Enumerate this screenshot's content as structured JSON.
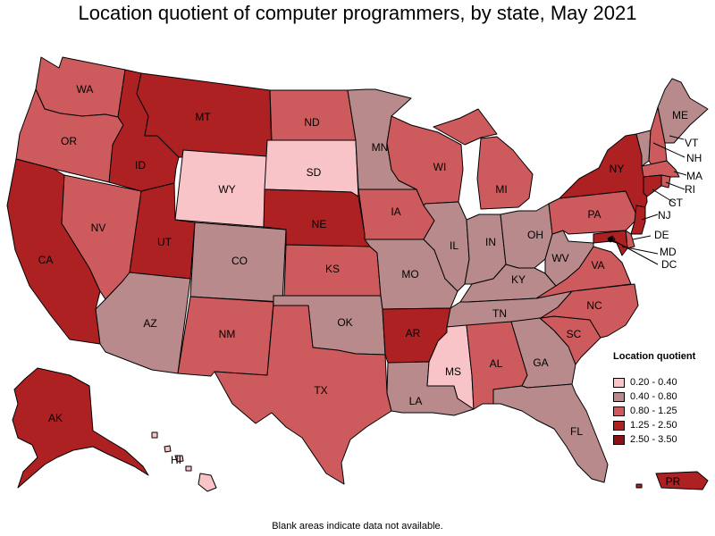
{
  "title": "Location quotient of computer programmers, by state, May 2021",
  "footnote": "Blank areas indicate data not available.",
  "legend": {
    "title": "Location quotient",
    "items": [
      {
        "label": "0.20 - 0.40",
        "color": "#f9c4c8"
      },
      {
        "label": "0.40 - 0.80",
        "color": "#b88a8c"
      },
      {
        "label": "0.80 - 1.25",
        "color": "#cd5b5d"
      },
      {
        "label": "1.25 - 2.50",
        "color": "#ae2123"
      },
      {
        "label": "2.50 - 3.50",
        "color": "#8c1014"
      }
    ]
  },
  "states": [
    {
      "abbr": "WA",
      "bin": 2
    },
    {
      "abbr": "OR",
      "bin": 2
    },
    {
      "abbr": "CA",
      "bin": 3
    },
    {
      "abbr": "NV",
      "bin": 2
    },
    {
      "abbr": "ID",
      "bin": 3
    },
    {
      "abbr": "MT",
      "bin": 3
    },
    {
      "abbr": "WY",
      "bin": 0
    },
    {
      "abbr": "UT",
      "bin": 3
    },
    {
      "abbr": "AZ",
      "bin": 1
    },
    {
      "abbr": "CO",
      "bin": 1
    },
    {
      "abbr": "NM",
      "bin": 2
    },
    {
      "abbr": "ND",
      "bin": 2
    },
    {
      "abbr": "SD",
      "bin": 0
    },
    {
      "abbr": "NE",
      "bin": 3
    },
    {
      "abbr": "KS",
      "bin": 2
    },
    {
      "abbr": "OK",
      "bin": 1
    },
    {
      "abbr": "TX",
      "bin": 2
    },
    {
      "abbr": "MN",
      "bin": 1
    },
    {
      "abbr": "IA",
      "bin": 2
    },
    {
      "abbr": "MO",
      "bin": 1
    },
    {
      "abbr": "AR",
      "bin": 3
    },
    {
      "abbr": "LA",
      "bin": 1
    },
    {
      "abbr": "WI",
      "bin": 2
    },
    {
      "abbr": "IL",
      "bin": 1
    },
    {
      "abbr": "MI",
      "bin": 2
    },
    {
      "abbr": "IN",
      "bin": 1
    },
    {
      "abbr": "OH",
      "bin": 1
    },
    {
      "abbr": "KY",
      "bin": 1
    },
    {
      "abbr": "TN",
      "bin": 1
    },
    {
      "abbr": "MS",
      "bin": 0
    },
    {
      "abbr": "AL",
      "bin": 2
    },
    {
      "abbr": "GA",
      "bin": 1
    },
    {
      "abbr": "FL",
      "bin": 1
    },
    {
      "abbr": "SC",
      "bin": 2
    },
    {
      "abbr": "NC",
      "bin": 2
    },
    {
      "abbr": "VA",
      "bin": 2
    },
    {
      "abbr": "WV",
      "bin": 1
    },
    {
      "abbr": "PA",
      "bin": 2
    },
    {
      "abbr": "NY",
      "bin": 3
    },
    {
      "abbr": "VT",
      "bin": 1
    },
    {
      "abbr": "NH",
      "bin": 2
    },
    {
      "abbr": "ME",
      "bin": 1
    },
    {
      "abbr": "MA",
      "bin": 2
    },
    {
      "abbr": "RI",
      "bin": 2
    },
    {
      "abbr": "CT",
      "bin": 3
    },
    {
      "abbr": "NJ",
      "bin": 3
    },
    {
      "abbr": "DE",
      "bin": 2
    },
    {
      "abbr": "MD",
      "bin": 3
    },
    {
      "abbr": "DC",
      "bin": 4
    },
    {
      "abbr": "AK",
      "bin": 3
    },
    {
      "abbr": "HI",
      "bin": 0
    },
    {
      "abbr": "PR",
      "bin": 3
    }
  ]
}
